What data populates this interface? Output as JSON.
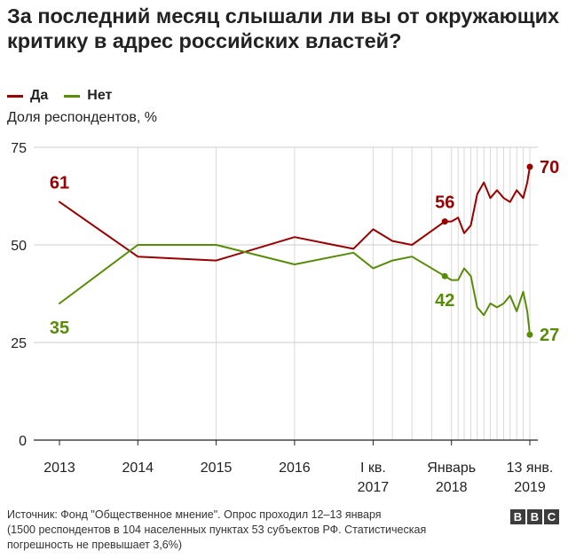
{
  "title": "За последний месяц слышали ли вы от окружающих критику в адрес российских властей?",
  "legend": {
    "yes_label": "Да",
    "no_label": "Нет"
  },
  "ylabel": "Доля респондентов, %",
  "colors": {
    "yes": "#990000",
    "no": "#588c08",
    "grid": "#cccccc",
    "vgrid": "#d9d9d9",
    "axis": "#222222"
  },
  "footer": {
    "line1": "Источник: Фонд \"Общественное мнение\". Опрос проходил 12–13 января",
    "line2": "(1500 респондентов в 104 населенных пунктах 53 субъектов РФ. Статистическая погрешность не превышает 3,6%)"
  },
  "logo": {
    "letters": [
      "B",
      "B",
      "C"
    ],
    "alt_text": "BBC"
  },
  "chart_data": {
    "type": "line",
    "title": "За последний месяц слышали ли вы от окружающих критику в адрес российских властей?",
    "ylabel": "Доля респондентов, %",
    "xlabel": "",
    "ylim": [
      0,
      75
    ],
    "yticks": [
      0,
      25,
      50,
      75
    ],
    "x_range": [
      "2013-01",
      "2019-01"
    ],
    "x_ticks": [
      {
        "x": "2013-01",
        "line1": "2013",
        "line2": ""
      },
      {
        "x": "2014-01",
        "line1": "2014",
        "line2": ""
      },
      {
        "x": "2015-01",
        "line1": "2015",
        "line2": ""
      },
      {
        "x": "2016-01",
        "line1": "2016",
        "line2": ""
      },
      {
        "x": "2017-01",
        "line1": "I кв.",
        "line2": "2017"
      },
      {
        "x": "2018-01",
        "line1": "Январь",
        "line2": "2018"
      },
      {
        "x": "2019-01",
        "line1": "13 янв.",
        "line2": "2019"
      }
    ],
    "vgrid_x": [
      "2014-01",
      "2015-01",
      "2016-01",
      "2017-01",
      "2017-04",
      "2017-07",
      "2017-10",
      "2018-01",
      "2018-02",
      "2018-03",
      "2018-04",
      "2018-05",
      "2018-06",
      "2018-07",
      "2018-08",
      "2018-09",
      "2018-10",
      "2018-11",
      "2018-12",
      "2019-01"
    ],
    "grid": true,
    "series": [
      {
        "name": "Да",
        "color_key": "yes",
        "x": [
          "2013-01",
          "2014-01",
          "2015-01",
          "2016-01",
          "2016-10",
          "2017-01",
          "2017-04",
          "2017-07",
          "2017-12",
          "2018-01",
          "2018-02",
          "2018-03",
          "2018-04",
          "2018-05",
          "2018-06",
          "2018-07",
          "2018-08",
          "2018-09",
          "2018-10",
          "2018-11",
          "2018-12",
          "2018-12-20",
          "2019-01"
        ],
        "values": [
          61,
          47,
          46,
          52,
          49,
          54,
          51,
          50,
          56,
          56,
          57,
          53,
          55,
          63,
          66,
          62,
          64,
          62,
          61,
          64,
          62,
          66,
          70
        ]
      },
      {
        "name": "Нет",
        "color_key": "no",
        "x": [
          "2013-01",
          "2014-01",
          "2015-01",
          "2016-01",
          "2016-10",
          "2017-01",
          "2017-04",
          "2017-07",
          "2017-12",
          "2018-01",
          "2018-02",
          "2018-03",
          "2018-04",
          "2018-05",
          "2018-06",
          "2018-07",
          "2018-08",
          "2018-09",
          "2018-10",
          "2018-11",
          "2018-12",
          "2018-12-20",
          "2019-01"
        ],
        "values": [
          35,
          50,
          50,
          45,
          48,
          44,
          46,
          47,
          42,
          41,
          41,
          44,
          42,
          34,
          32,
          35,
          34,
          35,
          37,
          33,
          38,
          33,
          27
        ]
      }
    ],
    "annotations": [
      {
        "series": 0,
        "x": "2013-01",
        "value": 61,
        "text": "61",
        "placement": "above",
        "dot": false
      },
      {
        "series": 0,
        "x": "2017-12",
        "value": 56,
        "text": "56",
        "placement": "above",
        "dot": true
      },
      {
        "series": 0,
        "x": "2019-01",
        "value": 70,
        "text": "70",
        "placement": "right",
        "dot": true
      },
      {
        "series": 1,
        "x": "2013-01",
        "value": 35,
        "text": "35",
        "placement": "below",
        "dot": false
      },
      {
        "series": 1,
        "x": "2017-12",
        "value": 42,
        "text": "42",
        "placement": "below",
        "dot": true
      },
      {
        "series": 1,
        "x": "2019-01",
        "value": 27,
        "text": "27",
        "placement": "right",
        "dot": true
      }
    ]
  }
}
